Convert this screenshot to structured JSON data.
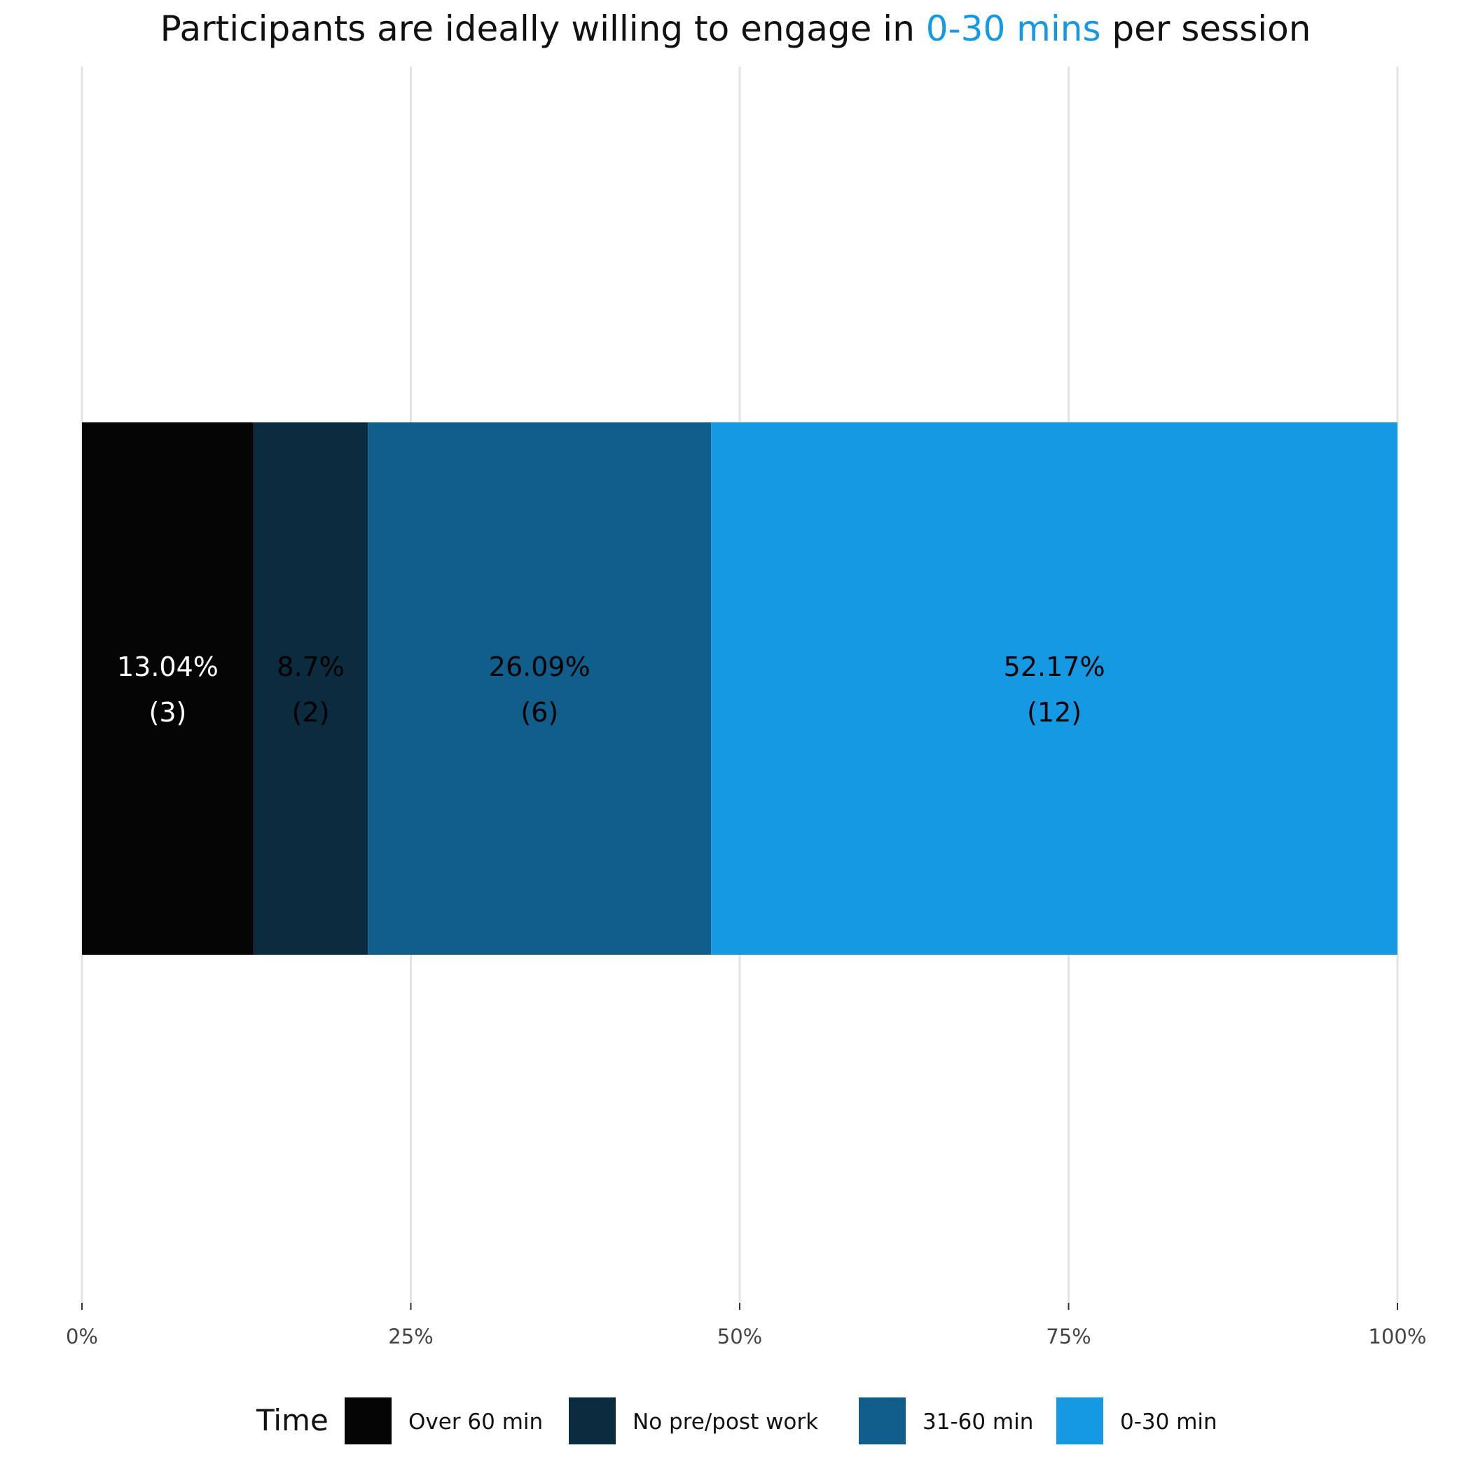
{
  "chart_data": {
    "type": "bar",
    "orientation": "horizontal-stacked",
    "title": {
      "prefix": "Participants are ideally willing to engage in ",
      "highlight": "0-30 mins",
      "suffix": " per session",
      "highlight_color": "#1699e3"
    },
    "xlim": [
      0,
      100
    ],
    "x_ticks": [
      0,
      25,
      50,
      75,
      100
    ],
    "x_tick_labels": [
      "0%",
      "25%",
      "50%",
      "75%",
      "100%"
    ],
    "grid": "vertical major gridlines",
    "series": [
      {
        "name": "Over 60 min",
        "value": 13.04,
        "count": 3,
        "label_pct": "13.04%",
        "label_count": "(3)",
        "color": "#050505",
        "label_color": "#ffffff"
      },
      {
        "name": "No pre/post work",
        "value": 8.7,
        "count": 2,
        "label_pct": "8.7%",
        "label_count": "(2)",
        "color": "#0b2b3e",
        "label_color": "#000000"
      },
      {
        "name": "31-60 min",
        "value": 26.09,
        "count": 6,
        "label_pct": "26.09%",
        "label_count": "(6)",
        "color": "#0f5e8b",
        "label_color": "#000000"
      },
      {
        "name": "0-30 min",
        "value": 52.17,
        "count": 12,
        "label_pct": "52.17%",
        "label_count": "(12)",
        "color": "#1699e3",
        "label_color": "#000000"
      }
    ],
    "legend": {
      "title": "Time",
      "position": "bottom"
    }
  }
}
